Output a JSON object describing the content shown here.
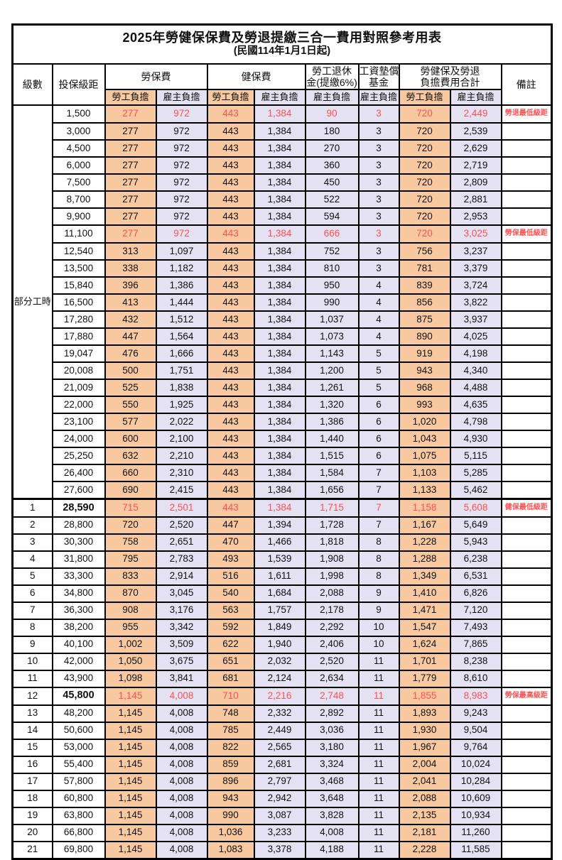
{
  "title": "2025年勞健保保費及勞退提繳三合一費用對照參考用表",
  "subtitle": "(民國114年1月1日起)",
  "colors": {
    "employee_burden_bg": "#F8C9A0",
    "employer_burden_bg": "#E4E1F2",
    "highlight_text": "#FF5050",
    "border": "#000000"
  },
  "header": {
    "level": "級數",
    "bracket": "投保級距",
    "labor_ins": "勞保費",
    "health_ins": "健保費",
    "pension_line1": "勞工退休",
    "pension_line2": "金(提繳6%)",
    "wage_fund_line1": "工資墊償",
    "wage_fund_line2": "基金",
    "total_line1": "勞健保及勞退",
    "total_line2": "負擔費用合計",
    "remark": "備註",
    "employee": "勞工負擔",
    "employer": "雇主負擔"
  },
  "part_time_label": "部分工時",
  "part_time_row_count": 23,
  "rows": [
    {
      "b": "1,500",
      "v": [
        "277",
        "972",
        "443",
        "1,384",
        "90",
        "3",
        "720",
        "2,449"
      ],
      "r": "勞退最低級距",
      "hl": true
    },
    {
      "b": "3,000",
      "v": [
        "277",
        "972",
        "443",
        "1,384",
        "180",
        "3",
        "720",
        "2,539"
      ]
    },
    {
      "b": "4,500",
      "v": [
        "277",
        "972",
        "443",
        "1,384",
        "270",
        "3",
        "720",
        "2,629"
      ]
    },
    {
      "b": "6,000",
      "v": [
        "277",
        "972",
        "443",
        "1,384",
        "360",
        "3",
        "720",
        "2,719"
      ]
    },
    {
      "b": "7,500",
      "v": [
        "277",
        "972",
        "443",
        "1,384",
        "450",
        "3",
        "720",
        "2,809"
      ]
    },
    {
      "b": "8,700",
      "v": [
        "277",
        "972",
        "443",
        "1,384",
        "522",
        "3",
        "720",
        "2,881"
      ]
    },
    {
      "b": "9,900",
      "v": [
        "277",
        "972",
        "443",
        "1,384",
        "594",
        "3",
        "720",
        "2,953"
      ]
    },
    {
      "b": "11,100",
      "v": [
        "277",
        "972",
        "443",
        "1,384",
        "666",
        "3",
        "720",
        "3,025"
      ],
      "r": "勞保最低級距",
      "hl": true
    },
    {
      "b": "12,540",
      "v": [
        "313",
        "1,097",
        "443",
        "1,384",
        "752",
        "3",
        "756",
        "3,237"
      ]
    },
    {
      "b": "13,500",
      "v": [
        "338",
        "1,182",
        "443",
        "1,384",
        "810",
        "3",
        "781",
        "3,379"
      ]
    },
    {
      "b": "15,840",
      "v": [
        "396",
        "1,386",
        "443",
        "1,384",
        "950",
        "4",
        "839",
        "3,724"
      ]
    },
    {
      "b": "16,500",
      "v": [
        "413",
        "1,444",
        "443",
        "1,384",
        "990",
        "4",
        "856",
        "3,822"
      ]
    },
    {
      "b": "17,280",
      "v": [
        "432",
        "1,512",
        "443",
        "1,384",
        "1,037",
        "4",
        "875",
        "3,937"
      ]
    },
    {
      "b": "17,880",
      "v": [
        "447",
        "1,564",
        "443",
        "1,384",
        "1,073",
        "4",
        "890",
        "4,025"
      ]
    },
    {
      "b": "19,047",
      "v": [
        "476",
        "1,666",
        "443",
        "1,384",
        "1,143",
        "5",
        "919",
        "4,198"
      ]
    },
    {
      "b": "20,008",
      "v": [
        "500",
        "1,751",
        "443",
        "1,384",
        "1,200",
        "5",
        "943",
        "4,340"
      ]
    },
    {
      "b": "21,009",
      "v": [
        "525",
        "1,838",
        "443",
        "1,384",
        "1,261",
        "5",
        "968",
        "4,488"
      ]
    },
    {
      "b": "22,000",
      "v": [
        "550",
        "1,925",
        "443",
        "1,384",
        "1,320",
        "6",
        "993",
        "4,635"
      ]
    },
    {
      "b": "23,100",
      "v": [
        "577",
        "2,022",
        "443",
        "1,384",
        "1,386",
        "6",
        "1,020",
        "4,798"
      ]
    },
    {
      "b": "24,000",
      "v": [
        "600",
        "2,100",
        "443",
        "1,384",
        "1,440",
        "6",
        "1,043",
        "4,930"
      ]
    },
    {
      "b": "25,250",
      "v": [
        "632",
        "2,210",
        "443",
        "1,384",
        "1,515",
        "6",
        "1,075",
        "5,115"
      ]
    },
    {
      "b": "26,400",
      "v": [
        "660",
        "2,310",
        "443",
        "1,384",
        "1,584",
        "7",
        "1,103",
        "5,285"
      ]
    },
    {
      "b": "27,600",
      "v": [
        "690",
        "2,415",
        "443",
        "1,384",
        "1,656",
        "7",
        "1,133",
        "5,462"
      ]
    },
    {
      "lv": "1",
      "b": "28,590",
      "v": [
        "715",
        "2,501",
        "443",
        "1,384",
        "1,715",
        "7",
        "1,158",
        "5,608"
      ],
      "r": "健保最低級距",
      "hl": true,
      "bold": true,
      "sec": true
    },
    {
      "lv": "2",
      "b": "28,800",
      "v": [
        "720",
        "2,520",
        "447",
        "1,394",
        "1,728",
        "7",
        "1,167",
        "5,649"
      ]
    },
    {
      "lv": "3",
      "b": "30,300",
      "v": [
        "758",
        "2,651",
        "470",
        "1,466",
        "1,818",
        "8",
        "1,228",
        "5,943"
      ]
    },
    {
      "lv": "4",
      "b": "31,800",
      "v": [
        "795",
        "2,783",
        "493",
        "1,539",
        "1,908",
        "8",
        "1,288",
        "6,238"
      ]
    },
    {
      "lv": "5",
      "b": "33,300",
      "v": [
        "833",
        "2,914",
        "516",
        "1,611",
        "1,998",
        "8",
        "1,349",
        "6,531"
      ]
    },
    {
      "lv": "6",
      "b": "34,800",
      "v": [
        "870",
        "3,045",
        "540",
        "1,684",
        "2,088",
        "9",
        "1,410",
        "6,826"
      ]
    },
    {
      "lv": "7",
      "b": "36,300",
      "v": [
        "908",
        "3,176",
        "563",
        "1,757",
        "2,178",
        "9",
        "1,471",
        "7,120"
      ]
    },
    {
      "lv": "8",
      "b": "38,200",
      "v": [
        "955",
        "3,342",
        "592",
        "1,849",
        "2,292",
        "10",
        "1,547",
        "7,493"
      ]
    },
    {
      "lv": "9",
      "b": "40,100",
      "v": [
        "1,002",
        "3,509",
        "622",
        "1,940",
        "2,406",
        "10",
        "1,624",
        "7,865"
      ]
    },
    {
      "lv": "10",
      "b": "42,000",
      "v": [
        "1,050",
        "3,675",
        "651",
        "2,032",
        "2,520",
        "11",
        "1,701",
        "8,238"
      ]
    },
    {
      "lv": "11",
      "b": "43,900",
      "v": [
        "1,098",
        "3,841",
        "681",
        "2,124",
        "2,634",
        "11",
        "1,779",
        "8,610"
      ]
    },
    {
      "lv": "12",
      "b": "45,800",
      "v": [
        "1,145",
        "4,008",
        "710",
        "2,216",
        "2,748",
        "11",
        "1,855",
        "8,983"
      ],
      "r": "勞保最高級距",
      "hl": true,
      "bold": true
    },
    {
      "lv": "13",
      "b": "48,200",
      "v": [
        "1,145",
        "4,008",
        "748",
        "2,332",
        "2,892",
        "11",
        "1,893",
        "9,243"
      ]
    },
    {
      "lv": "14",
      "b": "50,600",
      "v": [
        "1,145",
        "4,008",
        "785",
        "2,449",
        "3,036",
        "11",
        "1,930",
        "9,504"
      ]
    },
    {
      "lv": "15",
      "b": "53,000",
      "v": [
        "1,145",
        "4,008",
        "822",
        "2,565",
        "3,180",
        "11",
        "1,967",
        "9,764"
      ]
    },
    {
      "lv": "16",
      "b": "55,400",
      "v": [
        "1,145",
        "4,008",
        "859",
        "2,681",
        "3,324",
        "11",
        "2,004",
        "10,024"
      ]
    },
    {
      "lv": "17",
      "b": "57,800",
      "v": [
        "1,145",
        "4,008",
        "896",
        "2,797",
        "3,468",
        "11",
        "2,041",
        "10,284"
      ]
    },
    {
      "lv": "18",
      "b": "60,800",
      "v": [
        "1,145",
        "4,008",
        "943",
        "2,942",
        "3,648",
        "11",
        "2,088",
        "10,609"
      ]
    },
    {
      "lv": "19",
      "b": "63,800",
      "v": [
        "1,145",
        "4,008",
        "990",
        "3,087",
        "3,828",
        "11",
        "2,135",
        "10,934"
      ]
    },
    {
      "lv": "20",
      "b": "66,800",
      "v": [
        "1,145",
        "4,008",
        "1,036",
        "3,233",
        "4,008",
        "11",
        "2,181",
        "11,260"
      ]
    },
    {
      "lv": "21",
      "b": "69,800",
      "v": [
        "1,145",
        "4,008",
        "1,083",
        "3,378",
        "4,188",
        "11",
        "2,228",
        "11,585"
      ]
    }
  ],
  "value_column_burden": [
    "employee",
    "employer",
    "employee",
    "employer",
    "employer",
    "employer",
    "employee",
    "employer"
  ]
}
